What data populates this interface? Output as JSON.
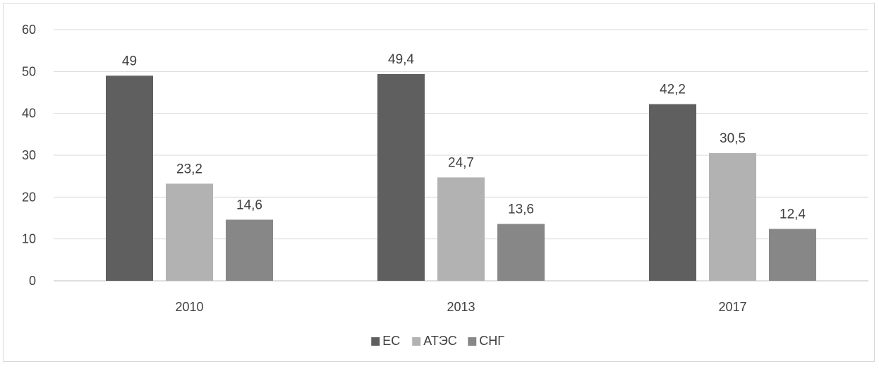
{
  "chart_data": {
    "type": "bar",
    "title": "",
    "xlabel": "",
    "ylabel": "",
    "categories": [
      "2010",
      "2013",
      "2017"
    ],
    "series": [
      {
        "name": "ЕС",
        "values": [
          49,
          49.4,
          42.2
        ],
        "labels": [
          "49",
          "49,4",
          "42,2"
        ],
        "color": "#5f5f5f"
      },
      {
        "name": "АТЭС",
        "values": [
          23.2,
          24.7,
          30.5
        ],
        "labels": [
          "23,2",
          "24,7",
          "30,5"
        ],
        "color": "#b2b2b2"
      },
      {
        "name": "СНГ",
        "values": [
          14.6,
          13.6,
          12.4
        ],
        "labels": [
          "14,6",
          "13,6",
          "12,4"
        ],
        "color": "#878787"
      }
    ],
    "ylim": [
      0,
      60
    ],
    "yticks": [
      "0",
      "10",
      "20",
      "30",
      "40",
      "50",
      "60"
    ],
    "grid": true,
    "legend_position": "bottom"
  }
}
